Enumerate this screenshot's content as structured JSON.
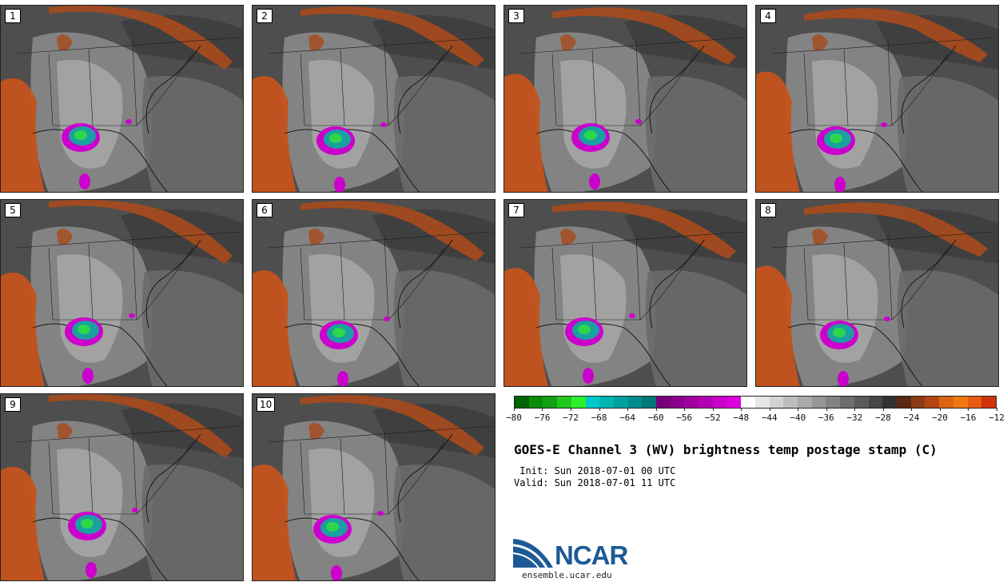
{
  "panels": [
    {
      "label": "1"
    },
    {
      "label": "2"
    },
    {
      "label": "3"
    },
    {
      "label": "4"
    },
    {
      "label": "5"
    },
    {
      "label": "6"
    },
    {
      "label": "7"
    },
    {
      "label": "8"
    },
    {
      "label": "9"
    },
    {
      "label": "10"
    }
  ],
  "colorbar": {
    "colors": [
      "#006400",
      "#0a8c0a",
      "#14a014",
      "#1ec81e",
      "#2cf02c",
      "#00c8c8",
      "#00b4b4",
      "#00a0a0",
      "#008c8c",
      "#007878",
      "#780078",
      "#8c008c",
      "#a000a0",
      "#b400b4",
      "#c800c8",
      "#dc00dc",
      "#ffffff",
      "#e6e6e6",
      "#d2d2d2",
      "#bebebe",
      "#aaaaaa",
      "#969696",
      "#828282",
      "#6e6e6e",
      "#5a5a5a",
      "#464646",
      "#323232",
      "#5a2814",
      "#8c3c14",
      "#b44614",
      "#dc6414",
      "#f07814",
      "#e65a14",
      "#d2320a"
    ],
    "tick_labels": [
      "−80",
      "−76",
      "−72",
      "−68",
      "−64",
      "−60",
      "−56",
      "−52",
      "−48",
      "−44",
      "−40",
      "−36",
      "−32",
      "−28",
      "−24",
      "−20",
      "−16",
      "−12"
    ]
  },
  "title": "GOES-E Channel 3 (WV) brightness temp postage stamp (C)",
  "init": " Init: Sun 2018-07-01 00 UTC",
  "valid": "Valid: Sun 2018-07-01 11 UTC",
  "logo": {
    "name": "NCAR",
    "url": "ensemble.ucar.edu",
    "color": "#1d5a96"
  }
}
